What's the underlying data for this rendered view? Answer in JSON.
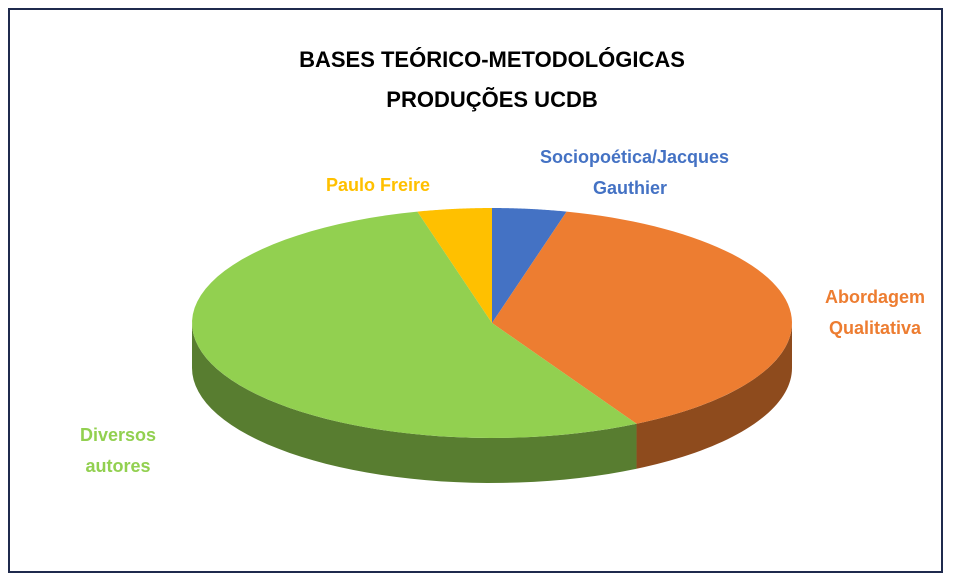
{
  "chart_data": {
    "type": "pie",
    "title": "BASES TEÓRICO-METODOLÓGICAS PRODUÇÕES UCDB",
    "categories": [
      "Sociopoética/Jacques Gauthier",
      "Abordagem Qualitativa",
      "Diversos autores",
      "Paulo Freire"
    ],
    "values": [
      4,
      38,
      54,
      4
    ],
    "colors": [
      "#4472c4",
      "#ed7d31",
      "#92d050",
      "#ffc000"
    ]
  }
}
